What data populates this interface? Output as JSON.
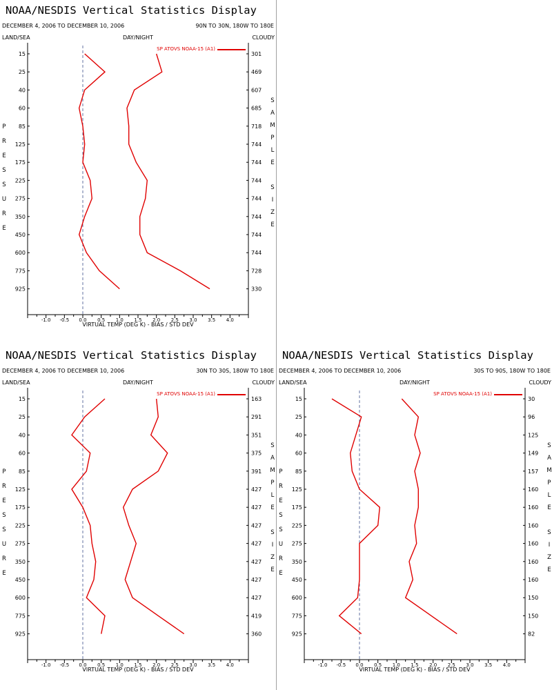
{
  "header_labels": {
    "title": "NOAA/NESDIS Vertical Statistics Display",
    "daynight": "DAY/NIGHT",
    "landsea": "LAND/SEA",
    "cloudy": "CLOUDY",
    "xlabel": "VIRTUAL TEMP (DEG K) - BIAS / STD DEV",
    "ylabel_letters": [
      "P",
      "R",
      "E",
      "S",
      "S",
      "U",
      "R",
      "E"
    ],
    "y2label_letters": [
      "S",
      "A",
      "M",
      "P",
      "L",
      "E",
      "",
      "S",
      "I",
      "Z",
      "E"
    ]
  },
  "colors": {
    "series": "#e00000",
    "zero_line": "#6070a0",
    "axis": "#000000"
  },
  "chart_data": [
    {
      "type": "line",
      "title": "NOAA/NESDIS Vertical Statistics Display",
      "date_range": "DECEMBER 4, 2006 TO DECEMBER 10, 2006",
      "region": "90N TO 30N, 180W TO 180E",
      "legend": "SP ATOVS NOAA-15 (A1)",
      "xlabel": "VIRTUAL TEMP (DEG K) - BIAS / STD DEV",
      "xlim": [
        -1.5,
        4.5
      ],
      "xticks": [
        "-1.0",
        "-0.5",
        "0.0",
        "0.5",
        "1.0",
        "1.5",
        "2.0",
        "2.5",
        "3.0",
        "3.5",
        "4.0"
      ],
      "pressure_levels": [
        "15",
        "25",
        "40",
        "60",
        "85",
        "125",
        "175",
        "225",
        "275",
        "350",
        "450",
        "600",
        "775",
        "925"
      ],
      "sample_size": [
        "301",
        "469",
        "607",
        "685",
        "718",
        "744",
        "744",
        "744",
        "744",
        "744",
        "744",
        "744",
        "728",
        "330"
      ],
      "series": [
        {
          "name": "BIAS",
          "values": [
            0.05,
            0.6,
            0.05,
            -0.1,
            0.0,
            0.05,
            0.0,
            0.2,
            0.25,
            0.05,
            -0.1,
            0.1,
            0.45,
            1.0
          ]
        },
        {
          "name": "STD DEV",
          "values": [
            2.0,
            2.15,
            1.4,
            1.2,
            1.25,
            1.25,
            1.45,
            1.75,
            1.7,
            1.55,
            1.55,
            1.75,
            2.65,
            3.45
          ]
        }
      ]
    },
    {
      "type": "line",
      "title": "NOAA/NESDIS Vertical Statistics Display",
      "date_range": "DECEMBER 4, 2006 TO DECEMBER 10, 2006",
      "region": "30N TO 30S, 180W TO 180E",
      "legend": "SP ATOVS NOAA-15 (A1)",
      "xlabel": "VIRTUAL TEMP (DEG K) - BIAS / STD DEV",
      "xlim": [
        -1.5,
        4.5
      ],
      "xticks": [
        "-1.0",
        "-0.5",
        "0.0",
        "0.5",
        "1.0",
        "1.5",
        "2.0",
        "2.5",
        "3.0",
        "3.5",
        "4.0"
      ],
      "pressure_levels": [
        "15",
        "25",
        "40",
        "60",
        "85",
        "125",
        "175",
        "225",
        "275",
        "350",
        "450",
        "600",
        "775",
        "925"
      ],
      "sample_size": [
        "163",
        "291",
        "351",
        "375",
        "391",
        "427",
        "427",
        "427",
        "427",
        "427",
        "427",
        "427",
        "419",
        "360"
      ],
      "series": [
        {
          "name": "BIAS",
          "values": [
            0.6,
            0.05,
            -0.3,
            0.2,
            0.1,
            -0.3,
            0.0,
            0.2,
            0.25,
            0.35,
            0.3,
            0.1,
            0.6,
            0.5
          ]
        },
        {
          "name": "STD DEV",
          "values": [
            2.0,
            2.05,
            1.85,
            2.3,
            2.05,
            1.35,
            1.1,
            1.25,
            1.45,
            1.3,
            1.15,
            1.35,
            2.05,
            2.75
          ]
        }
      ]
    },
    {
      "type": "line",
      "title": "NOAA/NESDIS Vertical Statistics Display",
      "date_range": "DECEMBER 4, 2006 TO DECEMBER 10, 2006",
      "region": "30S TO 90S, 180W TO 180E",
      "legend": "SP ATOVS NOAA-15 (A1)",
      "xlabel": "VIRTUAL TEMP (DEG K) - BIAS / STD DEV",
      "xlim": [
        -1.5,
        4.5
      ],
      "xticks": [
        "-1.0",
        "-0.5",
        "0.0",
        "0.5",
        "1.0",
        "1.5",
        "2.0",
        "2.5",
        "3.0",
        "3.5",
        "4.0"
      ],
      "pressure_levels": [
        "15",
        "25",
        "40",
        "60",
        "85",
        "125",
        "175",
        "225",
        "275",
        "350",
        "450",
        "600",
        "775",
        "925"
      ],
      "sample_size": [
        "30",
        "96",
        "125",
        "149",
        "157",
        "160",
        "160",
        "160",
        "160",
        "160",
        "160",
        "150",
        "150",
        "82"
      ],
      "series": [
        {
          "name": "BIAS",
          "values": [
            -0.75,
            0.05,
            -0.1,
            -0.25,
            -0.2,
            0.0,
            0.55,
            0.5,
            0.0,
            0.0,
            0.0,
            -0.05,
            -0.55,
            0.05
          ]
        },
        {
          "name": "STD DEV",
          "values": [
            1.15,
            1.6,
            1.5,
            1.65,
            1.5,
            1.6,
            1.6,
            1.5,
            1.55,
            1.35,
            1.45,
            1.25,
            1.95,
            2.65
          ]
        }
      ]
    }
  ]
}
